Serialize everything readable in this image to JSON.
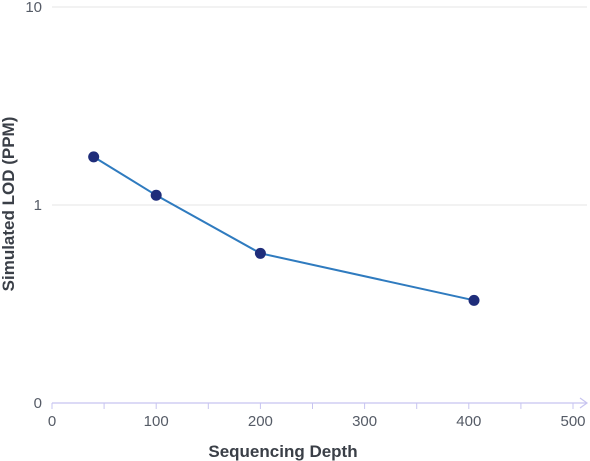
{
  "chart_data": {
    "type": "line",
    "title": "",
    "xlabel": "Sequencing Depth",
    "ylabel": "Simulated LOD (PPM)",
    "y_scale": "log",
    "x_ticks": [
      "0",
      "100",
      "200",
      "300",
      "400",
      "500"
    ],
    "y_ticks": [
      "10",
      "1",
      "0"
    ],
    "xlim": [
      0,
      500
    ],
    "series": [
      {
        "x": [
          40,
          100,
          200,
          405
        ],
        "y": [
          1.75,
          1.12,
          0.57,
          0.33
        ]
      }
    ],
    "grid": "horizontal",
    "colors": {
      "line": "#2f7bbf",
      "marker": "#1f2d7a",
      "axis": "#c7c4f0",
      "grid": "#e6e6e6"
    }
  }
}
